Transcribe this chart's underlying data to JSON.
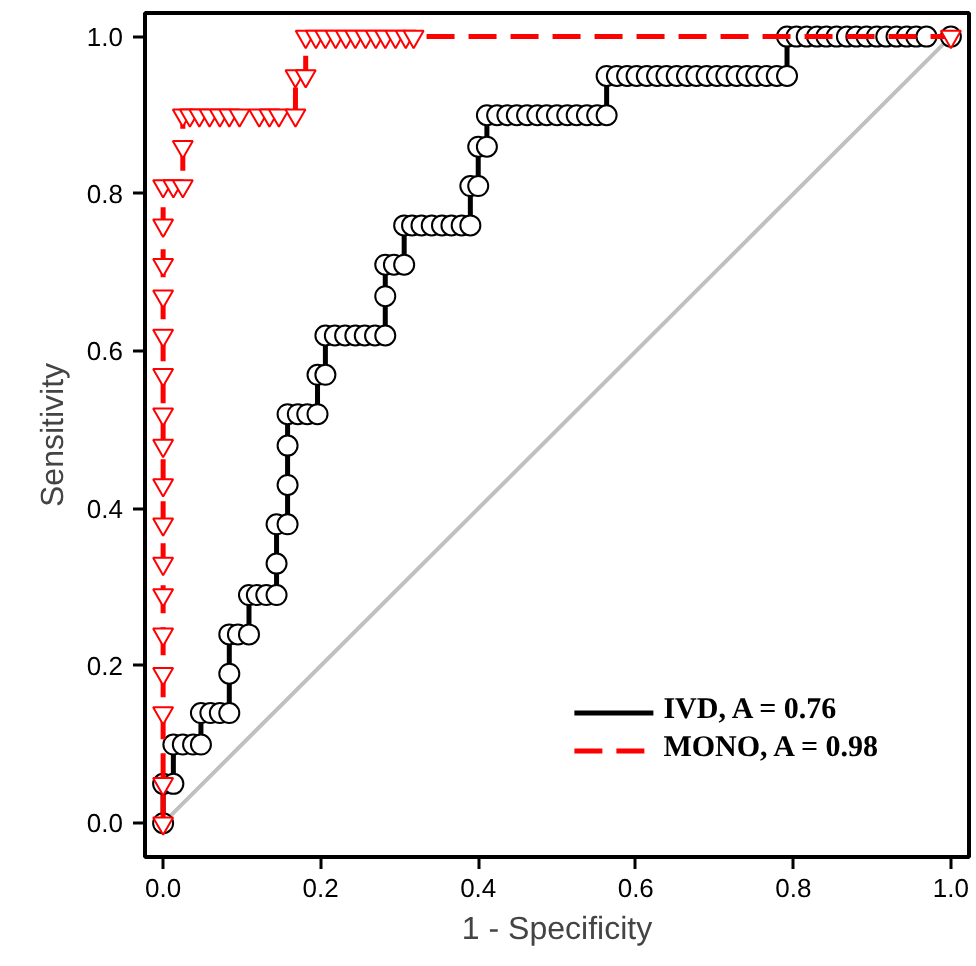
{
  "chart_data": {
    "type": "line",
    "xlabel": "1 - Specificity",
    "ylabel": "Sensitivity",
    "xlim": [
      -0.023,
      1.023
    ],
    "ylim": [
      -0.043,
      1.03
    ],
    "xticks": [
      {
        "value": 0,
        "label": "0.0"
      },
      {
        "value": 0.2,
        "label": "0.2"
      },
      {
        "value": 0.4,
        "label": "0.4"
      },
      {
        "value": 0.6,
        "label": "0.6"
      },
      {
        "value": 0.8,
        "label": "0.8"
      },
      {
        "value": 1,
        "label": "1.0"
      }
    ],
    "yticks": [
      {
        "value": 0,
        "label": "0.0"
      },
      {
        "value": 0.2,
        "label": "0.2"
      },
      {
        "value": 0.4,
        "label": "0.4"
      },
      {
        "value": 0.6,
        "label": "0.6"
      },
      {
        "value": 0.8,
        "label": "0.8"
      },
      {
        "value": 1,
        "label": "1.0"
      }
    ],
    "grid": false,
    "legend": "bottom right",
    "series": [
      {
        "color": "#c0c0c0",
        "marker": "none",
        "line_style": "solid",
        "x": [
          0,
          1
        ],
        "values": [
          0,
          1
        ]
      },
      {
        "name": "IVD, A = 0.76",
        "color": "#000000",
        "marker": "circle",
        "line_style": "solid",
        "x": [
          0,
          0,
          0.013,
          0.013,
          0.025,
          0.038,
          0.048,
          0.048,
          0.06,
          0.072,
          0.084,
          0.084,
          0.084,
          0.095,
          0.109,
          0.109,
          0.119,
          0.131,
          0.144,
          0.144,
          0.144,
          0.158,
          0.158,
          0.158,
          0.158,
          0.171,
          0.183,
          0.196,
          0.196,
          0.206,
          0.206,
          0.218,
          0.231,
          0.244,
          0.256,
          0.269,
          0.282,
          0.282,
          0.282,
          0.293,
          0.306,
          0.306,
          0.316,
          0.328,
          0.341,
          0.354,
          0.366,
          0.379,
          0.39,
          0.39,
          0.4,
          0.4,
          0.411,
          0.411,
          0.424,
          0.437,
          0.449,
          0.462,
          0.475,
          0.487,
          0.5,
          0.513,
          0.525,
          0.538,
          0.551,
          0.563,
          0.563,
          0.576,
          0.589,
          0.601,
          0.614,
          0.627,
          0.639,
          0.652,
          0.665,
          0.677,
          0.69,
          0.703,
          0.715,
          0.728,
          0.741,
          0.753,
          0.766,
          0.779,
          0.792,
          0.792,
          0.804,
          0.817,
          0.83,
          0.842,
          0.855,
          0.868,
          0.88,
          0.893,
          0.906,
          0.918,
          0.931,
          0.944,
          0.956,
          0.969,
          1.0
        ],
        "values": [
          0,
          0.05,
          0.05,
          0.1,
          0.1,
          0.1,
          0.1,
          0.14,
          0.14,
          0.14,
          0.14,
          0.19,
          0.24,
          0.24,
          0.24,
          0.29,
          0.29,
          0.29,
          0.29,
          0.33,
          0.38,
          0.38,
          0.43,
          0.48,
          0.52,
          0.52,
          0.52,
          0.52,
          0.57,
          0.57,
          0.62,
          0.62,
          0.62,
          0.62,
          0.62,
          0.62,
          0.62,
          0.67,
          0.71,
          0.71,
          0.71,
          0.76,
          0.76,
          0.76,
          0.76,
          0.76,
          0.76,
          0.76,
          0.76,
          0.81,
          0.81,
          0.86,
          0.86,
          0.9,
          0.9,
          0.9,
          0.9,
          0.9,
          0.9,
          0.9,
          0.9,
          0.9,
          0.9,
          0.9,
          0.9,
          0.9,
          0.95,
          0.95,
          0.95,
          0.95,
          0.95,
          0.95,
          0.95,
          0.95,
          0.95,
          0.95,
          0.95,
          0.95,
          0.95,
          0.95,
          0.95,
          0.95,
          0.95,
          0.95,
          0.95,
          1.0,
          1.0,
          1.0,
          1.0,
          1.0,
          1.0,
          1.0,
          1.0,
          1.0,
          1.0,
          1.0,
          1.0,
          1.0,
          1.0,
          1.0,
          1.0
        ]
      },
      {
        "name": "MONO, A = 0.98",
        "color": "#ff0000",
        "marker": "triangle",
        "line_style": "dashed",
        "x": [
          0,
          0,
          0,
          0,
          0,
          0,
          0,
          0,
          0,
          0,
          0,
          0,
          0,
          0,
          0,
          0,
          0,
          0.013,
          0.025,
          0.025,
          0.025,
          0.034,
          0.046,
          0.059,
          0.072,
          0.084,
          0.097,
          0.122,
          0.135,
          0.147,
          0.168,
          0.168,
          0.181,
          0.181,
          0.194,
          0.206,
          0.219,
          0.232,
          0.244,
          0.257,
          0.27,
          0.282,
          0.295,
          0.308,
          0.318,
          1.0
        ],
        "values": [
          0,
          0.05,
          0.14,
          0.19,
          0.24,
          0.29,
          0.33,
          0.38,
          0.43,
          0.48,
          0.52,
          0.57,
          0.62,
          0.67,
          0.71,
          0.76,
          0.81,
          0.81,
          0.81,
          0.86,
          0.9,
          0.9,
          0.9,
          0.9,
          0.9,
          0.9,
          0.9,
          0.9,
          0.9,
          0.9,
          0.9,
          0.95,
          0.95,
          1.0,
          1.0,
          1.0,
          1.0,
          1.0,
          1.0,
          1.0,
          1.0,
          1.0,
          1.0,
          1.0,
          1.0,
          1.0
        ]
      }
    ]
  }
}
